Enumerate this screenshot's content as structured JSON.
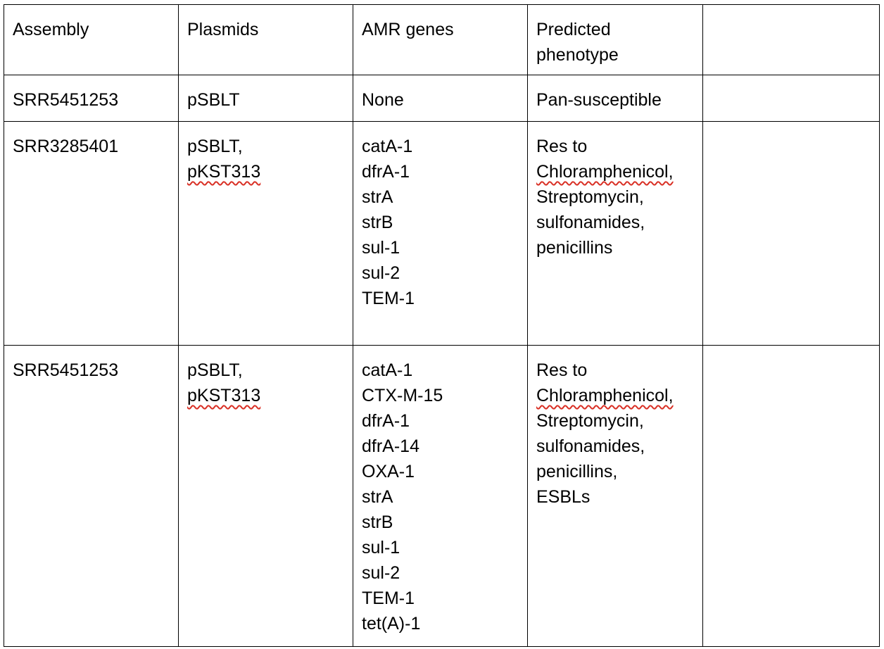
{
  "table": {
    "headers": [
      "Assembly",
      "Plasmids",
      "AMR genes",
      "Predicted phenotype",
      ""
    ],
    "rows": [
      {
        "assembly": "SRR5451253",
        "plasmids": [
          "pSBLT"
        ],
        "amr_genes": [
          "None"
        ],
        "phenotype": [
          "Pan-susceptible"
        ],
        "extra": ""
      },
      {
        "assembly": "SRR3285401",
        "plasmids": [
          "pSBLT,",
          "pKST313"
        ],
        "amr_genes": [
          "catA-1",
          "dfrA-1",
          "strA",
          "strB",
          "sul-1",
          "sul-2",
          "TEM-1"
        ],
        "phenotype": [
          "Res to",
          "Chloramphenicol,",
          "Streptomycin,",
          "sulfonamides,",
          "penicillins"
        ],
        "extra": ""
      },
      {
        "assembly": "SRR5451253",
        "plasmids": [
          "pSBLT,",
          "pKST313"
        ],
        "amr_genes": [
          "catA-1",
          "CTX-M-15",
          "dfrA-1",
          "dfrA-14",
          "OXA-1",
          "strA",
          "strB",
          "sul-1",
          "sul-2",
          "TEM-1",
          "tet(A)-1"
        ],
        "phenotype": [
          "Res to",
          "Chloramphenicol,",
          "Streptomycin,",
          "sulfonamides,",
          "penicillins,",
          "ESBLs"
        ],
        "extra": ""
      }
    ]
  }
}
